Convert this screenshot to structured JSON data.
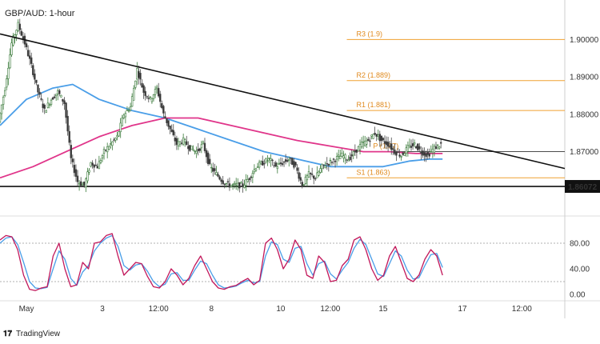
{
  "title": "GBP/AUD: 1-hour",
  "brand": "TradingView",
  "chart_data": {
    "type": "candlestick",
    "price_axis": {
      "range": [
        1.8545,
        1.9095
      ],
      "ticks": [
        "1.90000",
        "1.89000",
        "1.88000",
        "1.87000"
      ],
      "tick_values": [
        1.9,
        1.89,
        1.88,
        1.87
      ],
      "current_price_label": "1.86072",
      "current_price_value": 1.86072
    },
    "time_axis": {
      "range": [
        0,
        171
      ],
      "labels": [
        "May",
        "3",
        "12:00",
        "8",
        "10",
        "12:00",
        "15",
        "17",
        "12:00"
      ],
      "label_positions": [
        8,
        31,
        48,
        64,
        85,
        100,
        116,
        140,
        158
      ]
    },
    "pivot_levels": [
      {
        "label": "R3 (1.9)",
        "value": 1.9
      },
      {
        "label": "R2 (1.889)",
        "value": 1.889
      },
      {
        "label": "R1 (1.881)",
        "value": 1.881
      },
      {
        "label": "P (1.87)",
        "value": 1.87
      },
      {
        "label": "S1 (1.863)",
        "value": 1.863
      }
    ],
    "support_line": 1.8607,
    "trendline": {
      "from": [
        0,
        1.9015
      ],
      "to": [
        171,
        1.8655
      ]
    },
    "price_path": [
      [
        0,
        1.878
      ],
      [
        2,
        1.887
      ],
      [
        4,
        1.899
      ],
      [
        6,
        1.904
      ],
      [
        8,
        1.899
      ],
      [
        10,
        1.893
      ],
      [
        12,
        1.886
      ],
      [
        14,
        1.881
      ],
      [
        16,
        1.884
      ],
      [
        18,
        1.886
      ],
      [
        20,
        1.883
      ],
      [
        22,
        1.868
      ],
      [
        24,
        1.862
      ],
      [
        26,
        1.861
      ],
      [
        28,
        1.867
      ],
      [
        30,
        1.866
      ],
      [
        32,
        1.87
      ],
      [
        34,
        1.872
      ],
      [
        36,
        1.874
      ],
      [
        38,
        1.88
      ],
      [
        40,
        1.882
      ],
      [
        42,
        1.892
      ],
      [
        44,
        1.886
      ],
      [
        46,
        1.884
      ],
      [
        48,
        1.887
      ],
      [
        50,
        1.88
      ],
      [
        52,
        1.876
      ],
      [
        54,
        1.872
      ],
      [
        56,
        1.873
      ],
      [
        58,
        1.871
      ],
      [
        60,
        1.87
      ],
      [
        62,
        1.872
      ],
      [
        64,
        1.866
      ],
      [
        66,
        1.864
      ],
      [
        68,
        1.862
      ],
      [
        70,
        1.861
      ],
      [
        72,
        1.861
      ],
      [
        74,
        1.861
      ],
      [
        76,
        1.863
      ],
      [
        78,
        1.866
      ],
      [
        80,
        1.867
      ],
      [
        82,
        1.868
      ],
      [
        84,
        1.866
      ],
      [
        86,
        1.867
      ],
      [
        88,
        1.868
      ],
      [
        90,
        1.866
      ],
      [
        92,
        1.861
      ],
      [
        94,
        1.864
      ],
      [
        96,
        1.863
      ],
      [
        98,
        1.866
      ],
      [
        100,
        1.867
      ],
      [
        102,
        1.868
      ],
      [
        104,
        1.869
      ],
      [
        106,
        1.868
      ],
      [
        108,
        1.87
      ],
      [
        110,
        1.872
      ],
      [
        112,
        1.873
      ],
      [
        114,
        1.875
      ],
      [
        116,
        1.873
      ],
      [
        118,
        1.872
      ],
      [
        120,
        1.87
      ],
      [
        122,
        1.869
      ],
      [
        124,
        1.871
      ],
      [
        126,
        1.872
      ],
      [
        128,
        1.87
      ],
      [
        130,
        1.869
      ],
      [
        132,
        1.871
      ],
      [
        134,
        1.872
      ]
    ],
    "ma_blue": [
      [
        0,
        1.877
      ],
      [
        8,
        1.884
      ],
      [
        16,
        1.887
      ],
      [
        22,
        1.888
      ],
      [
        30,
        1.884
      ],
      [
        40,
        1.881
      ],
      [
        50,
        1.879
      ],
      [
        60,
        1.876
      ],
      [
        70,
        1.873
      ],
      [
        80,
        1.87
      ],
      [
        90,
        1.868
      ],
      [
        100,
        1.866
      ],
      [
        108,
        1.866
      ],
      [
        116,
        1.866
      ],
      [
        124,
        1.8675
      ],
      [
        130,
        1.868
      ],
      [
        134,
        1.868
      ]
    ],
    "ma_pink": [
      [
        0,
        1.863
      ],
      [
        10,
        1.866
      ],
      [
        20,
        1.87
      ],
      [
        30,
        1.874
      ],
      [
        40,
        1.877
      ],
      [
        50,
        1.879
      ],
      [
        60,
        1.879
      ],
      [
        70,
        1.877
      ],
      [
        80,
        1.875
      ],
      [
        90,
        1.873
      ],
      [
        100,
        1.8715
      ],
      [
        110,
        1.87
      ],
      [
        118,
        1.87
      ],
      [
        126,
        1.8695
      ],
      [
        134,
        1.8695
      ]
    ],
    "oscillator": {
      "range": [
        -5,
        110
      ],
      "ticks": [
        "80.00",
        "40.00",
        "0.00"
      ],
      "tick_values": [
        80,
        40,
        0
      ],
      "overbought": 80,
      "oversold": 20,
      "k": [
        85,
        92,
        90,
        70,
        30,
        8,
        6,
        10,
        12,
        60,
        80,
        40,
        12,
        15,
        50,
        40,
        80,
        82,
        92,
        95,
        60,
        30,
        40,
        50,
        48,
        28,
        12,
        10,
        20,
        40,
        30,
        15,
        25,
        45,
        60,
        40,
        20,
        10,
        8,
        12,
        14,
        20,
        25,
        15,
        22,
        80,
        88,
        70,
        40,
        55,
        85,
        70,
        30,
        25,
        60,
        50,
        20,
        22,
        45,
        55,
        85,
        90,
        70,
        40,
        22,
        30,
        60,
        75,
        50,
        25,
        20,
        30,
        55,
        70,
        60,
        30
      ],
      "d": [
        80,
        88,
        90,
        78,
        50,
        20,
        10,
        9,
        11,
        40,
        68,
        55,
        25,
        14,
        35,
        45,
        68,
        80,
        88,
        92,
        75,
        45,
        38,
        46,
        48,
        36,
        20,
        12,
        16,
        32,
        34,
        22,
        22,
        38,
        52,
        48,
        30,
        15,
        10,
        11,
        13,
        18,
        22,
        18,
        20,
        60,
        82,
        78,
        55,
        50,
        72,
        75,
        48,
        30,
        48,
        52,
        32,
        24,
        38,
        50,
        72,
        86,
        78,
        55,
        32,
        28,
        48,
        68,
        60,
        38,
        24,
        26,
        45,
        62,
        64,
        42
      ]
    }
  }
}
